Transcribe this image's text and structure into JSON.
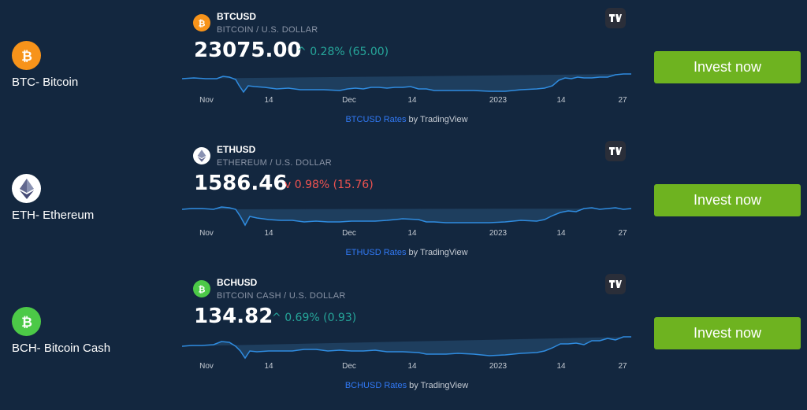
{
  "colors": {
    "background": "#13273f",
    "up": "#26a69a",
    "down": "#ef5350",
    "invest_button": "#6eb320",
    "line": "#2f8ce0"
  },
  "chart_axis_ticks": [
    "Nov",
    "14",
    "Dec",
    "14",
    "2023",
    "14",
    "27"
  ],
  "rows": [
    {
      "coin_label": "BTC- Bitcoin",
      "coin_icon": "bitcoin-icon",
      "coin_color": "#f7931a",
      "symbol": "BTCUSD",
      "description": "BITCOIN / U.S. DOLLAR",
      "price": "23075.00",
      "direction": "up",
      "change_arrow": "^",
      "change": "0.28% (65.00)",
      "attribution_link": "BTCUSD Rates",
      "attribution_suffix": " by TradingView",
      "button": "Invest now"
    },
    {
      "coin_label": "ETH- Ethereum",
      "coin_icon": "ethereum-icon",
      "coin_color": "#ffffff",
      "symbol": "ETHUSD",
      "description": "ETHEREUM / U.S. DOLLAR",
      "price": "1586.46",
      "direction": "down",
      "change_arrow": "v",
      "change": "0.98% (15.76)",
      "attribution_link": "ETHUSD Rates",
      "attribution_suffix": " by TradingView",
      "button": "Invest now"
    },
    {
      "coin_label": "BCH- Bitcoin Cash",
      "coin_icon": "bitcoin-cash-icon",
      "coin_color": "#4cc947",
      "symbol": "BCHUSD",
      "description": "BITCOIN CASH / U.S. DOLLAR",
      "price": "134.82",
      "direction": "up",
      "change_arrow": "^",
      "change": "0.69% (0.93)",
      "attribution_link": "BCHUSD Rates",
      "attribution_suffix": " by TradingView",
      "button": "Invest now"
    }
  ]
}
